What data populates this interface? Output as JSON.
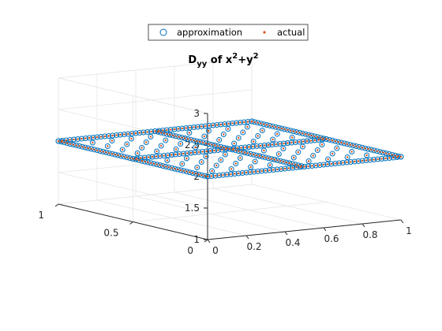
{
  "chart_data": {
    "type": "scatter",
    "title": {
      "base": "D",
      "sub": "yy",
      "mid": " of x",
      "sup1": "2",
      "plus": "+y",
      "sup2": "2"
    },
    "xlabel": "",
    "ylabel": "",
    "zlabel": "",
    "xlim": [
      0,
      1
    ],
    "ylim": [
      0,
      1
    ],
    "zlim": [
      1,
      3
    ],
    "x_ticks": [
      "0",
      "0.2",
      "0.4",
      "0.6",
      "0.8",
      "1"
    ],
    "x_tick_values": [
      0,
      0.2,
      0.4,
      0.6,
      0.8,
      1
    ],
    "y_ticks": [
      "0",
      "0.5",
      "1"
    ],
    "y_tick_values": [
      0,
      0.5,
      1
    ],
    "z_ticks": [
      "1",
      "1.5",
      "2",
      "2.5",
      "3"
    ],
    "z_tick_values": [
      1,
      1.5,
      2,
      2.5,
      3
    ],
    "grid": true,
    "legend_placement": "top",
    "series": [
      {
        "name": "approximation",
        "marker": "open-circle",
        "color": "#0072BD",
        "description_z": 2,
        "edge_points_per_side": 51,
        "interior_grid": 11
      },
      {
        "name": "actual",
        "marker": "dot",
        "color": "#D95319",
        "description_z": 2,
        "edge_points_per_side": 51,
        "interior_lines": [
          0.5
        ]
      }
    ],
    "surface_z": 2
  }
}
